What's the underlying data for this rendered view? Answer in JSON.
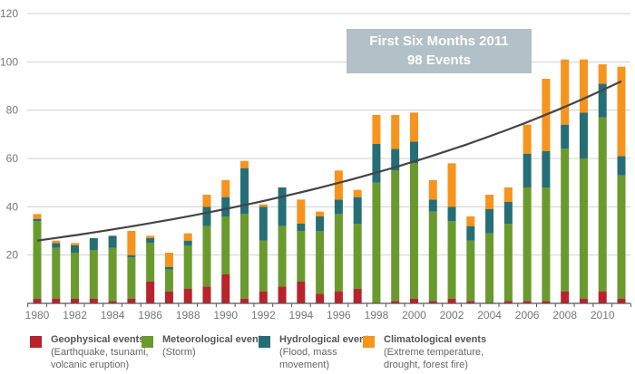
{
  "chart_data": {
    "type": "bar",
    "stacked": true,
    "title": "",
    "xlabel": "",
    "ylabel": "",
    "ylim": [
      0,
      120
    ],
    "yticks": [
      20,
      40,
      60,
      80,
      100,
      120
    ],
    "grid": true,
    "categories": [
      "1980",
      "1981",
      "1982",
      "1983",
      "1984",
      "1985",
      "1986",
      "1987",
      "1988",
      "1989",
      "1990",
      "1991",
      "1992",
      "1993",
      "1994",
      "1995",
      "1996",
      "1997",
      "1998",
      "1999",
      "2000",
      "2001",
      "2002",
      "2003",
      "2004",
      "2005",
      "2006",
      "2007",
      "2008",
      "2009",
      "2010",
      "2011"
    ],
    "xtick_labels": [
      "1980",
      "1982",
      "1984",
      "1986",
      "1988",
      "1990",
      "1992",
      "1994",
      "1996",
      "1998",
      "2000",
      "2002",
      "2004",
      "2006",
      "2008",
      "2010"
    ],
    "series": [
      {
        "name": "Geophysical events",
        "color": "#b8232c",
        "values": [
          2,
          2,
          2,
          2,
          1,
          2,
          9,
          5,
          6,
          7,
          12,
          2,
          5,
          7,
          9,
          4,
          5,
          6,
          0,
          1,
          2,
          1,
          2,
          1,
          0,
          1,
          1,
          1,
          5,
          2,
          5,
          2
        ]
      },
      {
        "name": "Meteorological events",
        "color": "#6a9a2d",
        "values": [
          32,
          21,
          19,
          20,
          22,
          17,
          16,
          9,
          18,
          25,
          24,
          35,
          21,
          25,
          21,
          26,
          32,
          27,
          50,
          54,
          56,
          37,
          32,
          25,
          29,
          32,
          47,
          47,
          59,
          58,
          72,
          51
        ]
      },
      {
        "name": "Hydrological events",
        "color": "#266e76",
        "values": [
          1,
          2,
          3,
          5,
          5,
          1,
          2,
          1,
          2,
          8,
          8,
          19,
          14,
          16,
          3,
          6,
          6,
          11,
          16,
          9,
          9,
          5,
          6,
          6,
          10,
          9,
          14,
          15,
          10,
          19,
          14,
          8
        ]
      },
      {
        "name": "Climatological events",
        "color": "#f7941d",
        "values": [
          2,
          1,
          1,
          0,
          0,
          10,
          1,
          6,
          3,
          5,
          7,
          3,
          1,
          0,
          10,
          2,
          12,
          3,
          12,
          14,
          12,
          8,
          18,
          4,
          6,
          6,
          12,
          30,
          27,
          22,
          8,
          37
        ]
      }
    ],
    "trendline": {
      "type": "exponential",
      "start": {
        "x": "1980",
        "y": 26
      },
      "end": {
        "x": "2011",
        "y": 92
      },
      "color": "#444444"
    },
    "annotation": {
      "line1": "First Six Months 2011",
      "line2": "98 Events"
    },
    "legend": {
      "placement": "bottom",
      "items": [
        {
          "title": "Geophysical events",
          "desc": "(Earthquake, tsunami,\nvolcanic eruption)",
          "color": "#b8232c"
        },
        {
          "title": "Meteorological events",
          "desc": "(Storm)",
          "color": "#6a9a2d"
        },
        {
          "title": "Hydrological events",
          "desc": "(Flood, mass\nmovement)",
          "color": "#266e76"
        },
        {
          "title": "Climatological events",
          "desc": "(Extreme temperature,\ndrought, forest fire)",
          "color": "#f7941d"
        }
      ]
    }
  }
}
